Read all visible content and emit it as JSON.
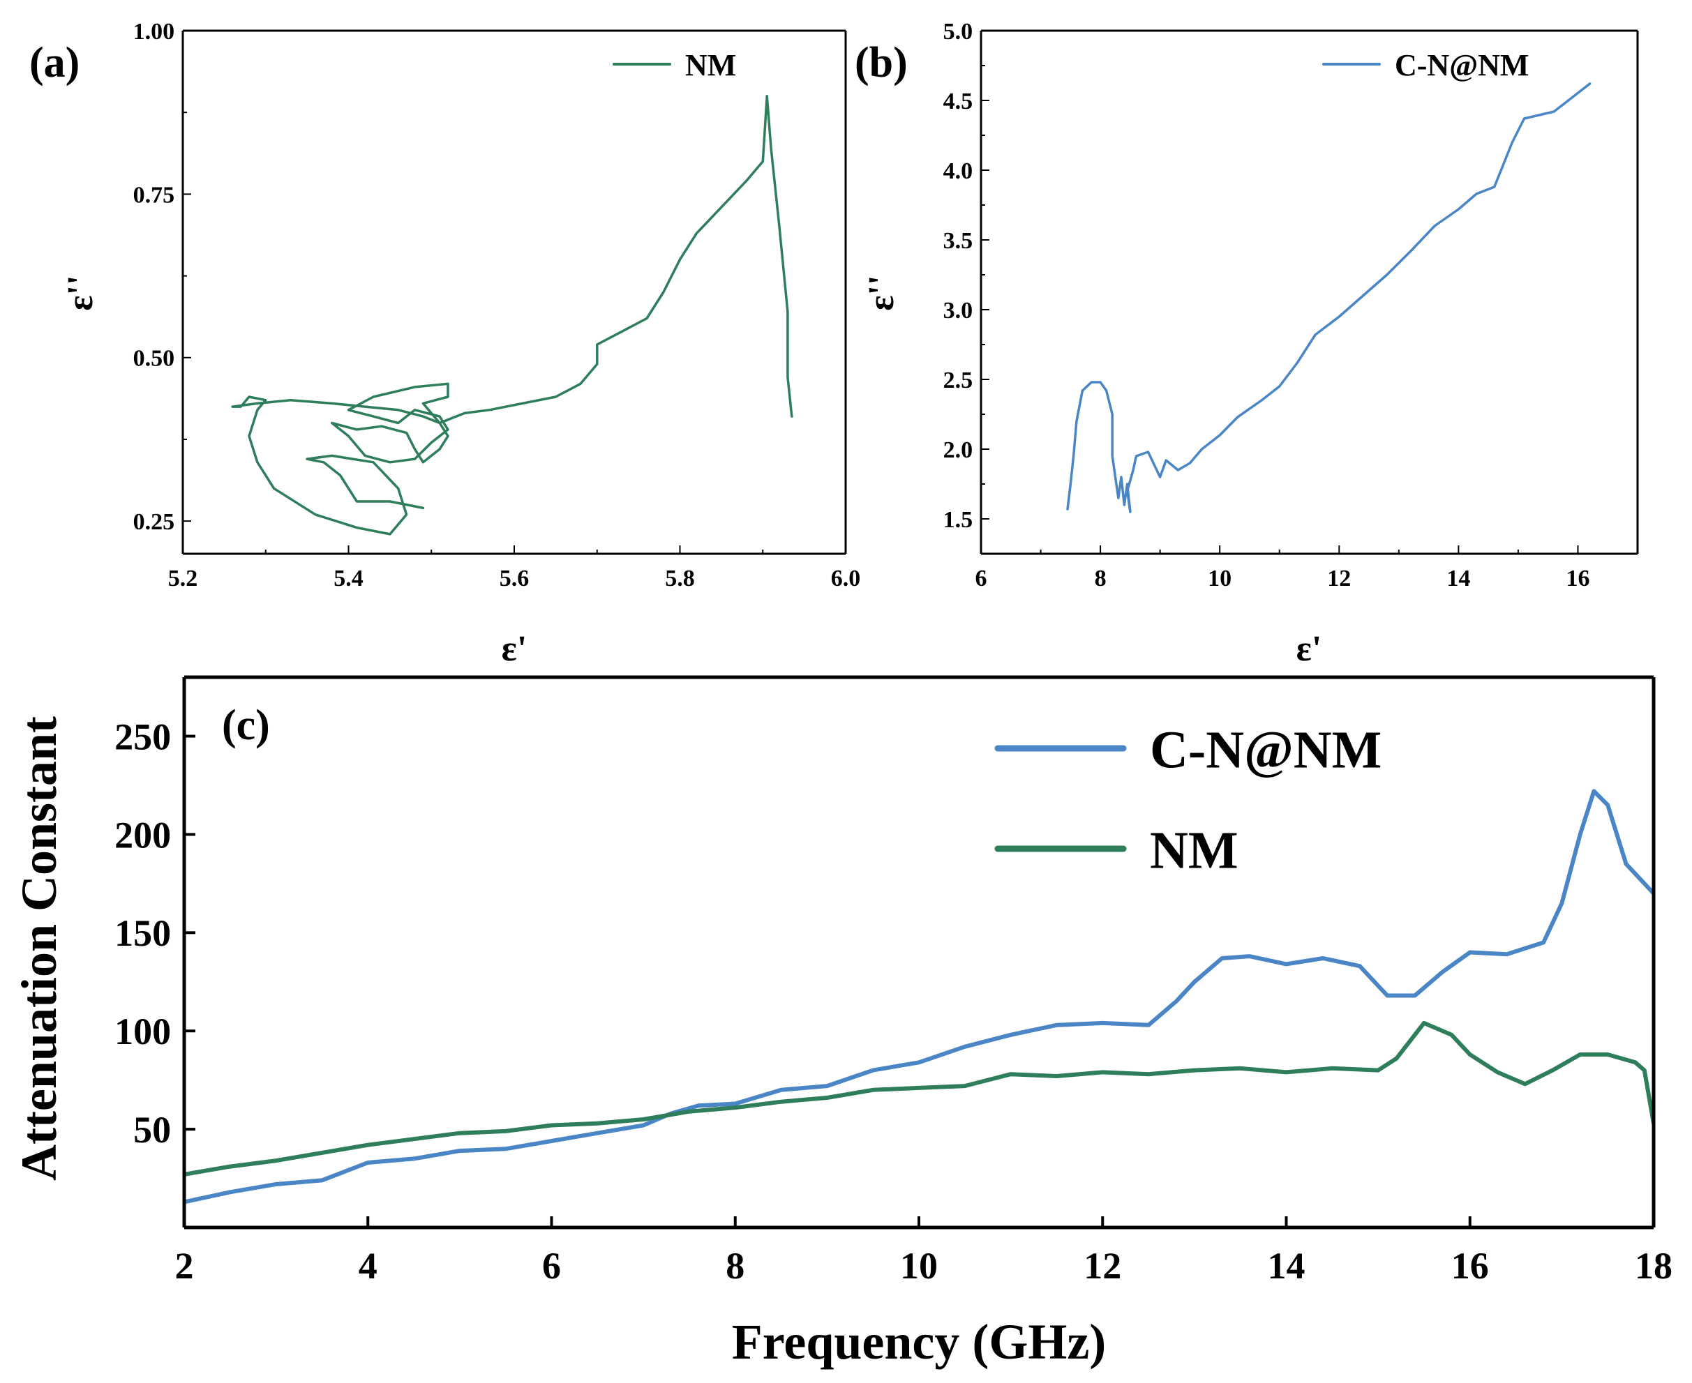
{
  "chart_data": [
    {
      "id": "a",
      "panel_label": "(a)",
      "type": "line",
      "xlabel": "ε'",
      "ylabel": "ε''",
      "xlim": [
        5.2,
        6.0
      ],
      "ylim": [
        0.2,
        1.0
      ],
      "xticks": [
        "5.2",
        "5.4",
        "5.6",
        "5.8",
        "6.0"
      ],
      "yticks": [
        "0.25",
        "0.50",
        "0.75",
        "1.00"
      ],
      "legend_position": "top-right",
      "series": [
        {
          "name": "NM",
          "color": "#2e7d5b",
          "points": [
            [
              5.49,
              0.27
            ],
            [
              5.45,
              0.28
            ],
            [
              5.41,
              0.28
            ],
            [
              5.39,
              0.32
            ],
            [
              5.37,
              0.34
            ],
            [
              5.35,
              0.345
            ],
            [
              5.38,
              0.35
            ],
            [
              5.43,
              0.34
            ],
            [
              5.46,
              0.3
            ],
            [
              5.47,
              0.26
            ],
            [
              5.45,
              0.23
            ],
            [
              5.41,
              0.24
            ],
            [
              5.36,
              0.26
            ],
            [
              5.31,
              0.3
            ],
            [
              5.29,
              0.34
            ],
            [
              5.28,
              0.38
            ],
            [
              5.29,
              0.42
            ],
            [
              5.3,
              0.435
            ],
            [
              5.28,
              0.44
            ],
            [
              5.27,
              0.425
            ],
            [
              5.26,
              0.425
            ],
            [
              5.29,
              0.43
            ],
            [
              5.33,
              0.435
            ],
            [
              5.38,
              0.43
            ],
            [
              5.42,
              0.425
            ],
            [
              5.46,
              0.42
            ],
            [
              5.49,
              0.41
            ],
            [
              5.51,
              0.4
            ],
            [
              5.52,
              0.38
            ],
            [
              5.51,
              0.36
            ],
            [
              5.49,
              0.34
            ],
            [
              5.48,
              0.36
            ],
            [
              5.47,
              0.385
            ],
            [
              5.44,
              0.395
            ],
            [
              5.41,
              0.39
            ],
            [
              5.38,
              0.4
            ],
            [
              5.4,
              0.38
            ],
            [
              5.42,
              0.35
            ],
            [
              5.45,
              0.34
            ],
            [
              5.48,
              0.345
            ],
            [
              5.5,
              0.37
            ],
            [
              5.52,
              0.39
            ],
            [
              5.51,
              0.41
            ],
            [
              5.48,
              0.42
            ],
            [
              5.46,
              0.4
            ],
            [
              5.43,
              0.41
            ],
            [
              5.4,
              0.42
            ],
            [
              5.43,
              0.44
            ],
            [
              5.48,
              0.455
            ],
            [
              5.52,
              0.46
            ],
            [
              5.52,
              0.44
            ],
            [
              5.49,
              0.43
            ],
            [
              5.51,
              0.4
            ],
            [
              5.54,
              0.415
            ],
            [
              5.57,
              0.42
            ],
            [
              5.61,
              0.43
            ],
            [
              5.65,
              0.44
            ],
            [
              5.68,
              0.46
            ],
            [
              5.7,
              0.49
            ],
            [
              5.7,
              0.52
            ],
            [
              5.73,
              0.54
            ],
            [
              5.76,
              0.56
            ],
            [
              5.78,
              0.6
            ],
            [
              5.8,
              0.65
            ],
            [
              5.82,
              0.69
            ],
            [
              5.85,
              0.73
            ],
            [
              5.88,
              0.77
            ],
            [
              5.9,
              0.8
            ],
            [
              5.905,
              0.9
            ],
            [
              5.91,
              0.82
            ],
            [
              5.92,
              0.7
            ],
            [
              5.93,
              0.57
            ],
            [
              5.93,
              0.47
            ],
            [
              5.935,
              0.41
            ]
          ]
        }
      ]
    },
    {
      "id": "b",
      "panel_label": "(b)",
      "type": "line",
      "xlabel": "ε'",
      "ylabel": "ε''",
      "xlim": [
        6,
        17
      ],
      "ylim": [
        1.25,
        5.0
      ],
      "xticks": [
        "6",
        "8",
        "10",
        "12",
        "14",
        "16"
      ],
      "yticks": [
        "1.5",
        "2.0",
        "2.5",
        "3.0",
        "3.5",
        "4.0",
        "4.5",
        "5.0"
      ],
      "legend_position": "top-right",
      "series": [
        {
          "name": "C-N@NM",
          "color": "#4a86c5",
          "points": [
            [
              7.45,
              1.57
            ],
            [
              7.5,
              1.75
            ],
            [
              7.55,
              1.95
            ],
            [
              7.6,
              2.2
            ],
            [
              7.7,
              2.42
            ],
            [
              7.85,
              2.48
            ],
            [
              8.0,
              2.48
            ],
            [
              8.1,
              2.42
            ],
            [
              8.2,
              2.25
            ],
            [
              8.2,
              1.95
            ],
            [
              8.25,
              1.8
            ],
            [
              8.3,
              1.65
            ],
            [
              8.35,
              1.8
            ],
            [
              8.4,
              1.6
            ],
            [
              8.45,
              1.75
            ],
            [
              8.5,
              1.55
            ],
            [
              8.45,
              1.7
            ],
            [
              8.55,
              1.85
            ],
            [
              8.6,
              1.95
            ],
            [
              8.8,
              1.98
            ],
            [
              9.0,
              1.8
            ],
            [
              9.1,
              1.92
            ],
            [
              9.3,
              1.85
            ],
            [
              9.5,
              1.9
            ],
            [
              9.7,
              2.0
            ],
            [
              10.0,
              2.1
            ],
            [
              10.3,
              2.23
            ],
            [
              10.7,
              2.35
            ],
            [
              11.0,
              2.45
            ],
            [
              11.3,
              2.62
            ],
            [
              11.6,
              2.82
            ],
            [
              12.0,
              2.95
            ],
            [
              12.4,
              3.1
            ],
            [
              12.8,
              3.25
            ],
            [
              13.2,
              3.42
            ],
            [
              13.6,
              3.6
            ],
            [
              14.0,
              3.72
            ],
            [
              14.3,
              3.83
            ],
            [
              14.6,
              3.88
            ],
            [
              14.9,
              4.2
            ],
            [
              15.1,
              4.37
            ],
            [
              15.6,
              4.42
            ],
            [
              16.2,
              4.62
            ]
          ]
        }
      ]
    },
    {
      "id": "c",
      "panel_label": "(c)",
      "type": "line",
      "xlabel": "Frequency (GHz)",
      "ylabel": "Attenuation Constant",
      "xlim": [
        2,
        18
      ],
      "ylim": [
        0,
        280
      ],
      "xticks": [
        "2",
        "4",
        "6",
        "8",
        "10",
        "12",
        "14",
        "16",
        "18"
      ],
      "yticks": [
        "50",
        "100",
        "150",
        "200",
        "250"
      ],
      "legend_position": "top-right",
      "series": [
        {
          "name": "C-N@NM",
          "color": "#4a86c5",
          "points": [
            [
              2.0,
              13
            ],
            [
              2.5,
              18
            ],
            [
              3.0,
              22
            ],
            [
              3.5,
              24
            ],
            [
              4.0,
              33
            ],
            [
              4.5,
              35
            ],
            [
              5.0,
              39
            ],
            [
              5.5,
              40
            ],
            [
              6.0,
              44
            ],
            [
              6.5,
              48
            ],
            [
              7.0,
              52
            ],
            [
              7.3,
              58
            ],
            [
              7.6,
              62
            ],
            [
              8.0,
              63
            ],
            [
              8.5,
              70
            ],
            [
              9.0,
              72
            ],
            [
              9.5,
              80
            ],
            [
              10.0,
              84
            ],
            [
              10.5,
              92
            ],
            [
              11.0,
              98
            ],
            [
              11.5,
              103
            ],
            [
              12.0,
              104
            ],
            [
              12.5,
              103
            ],
            [
              12.8,
              115
            ],
            [
              13.0,
              125
            ],
            [
              13.3,
              137
            ],
            [
              13.6,
              138
            ],
            [
              14.0,
              134
            ],
            [
              14.4,
              137
            ],
            [
              14.8,
              133
            ],
            [
              15.1,
              118
            ],
            [
              15.4,
              118
            ],
            [
              15.7,
              130
            ],
            [
              16.0,
              140
            ],
            [
              16.4,
              139
            ],
            [
              16.8,
              145
            ],
            [
              17.0,
              165
            ],
            [
              17.2,
              200
            ],
            [
              17.35,
              222
            ],
            [
              17.5,
              215
            ],
            [
              17.7,
              185
            ],
            [
              17.9,
              175
            ],
            [
              18.0,
              170
            ]
          ]
        },
        {
          "name": "NM",
          "color": "#2e7d5b",
          "points": [
            [
              2.0,
              27
            ],
            [
              2.5,
              31
            ],
            [
              3.0,
              34
            ],
            [
              3.5,
              38
            ],
            [
              4.0,
              42
            ],
            [
              4.5,
              45
            ],
            [
              5.0,
              48
            ],
            [
              5.5,
              49
            ],
            [
              6.0,
              52
            ],
            [
              6.5,
              53
            ],
            [
              7.0,
              55
            ],
            [
              7.5,
              59
            ],
            [
              8.0,
              61
            ],
            [
              8.5,
              64
            ],
            [
              9.0,
              66
            ],
            [
              9.5,
              70
            ],
            [
              10.0,
              71
            ],
            [
              10.5,
              72
            ],
            [
              11.0,
              78
            ],
            [
              11.5,
              77
            ],
            [
              12.0,
              79
            ],
            [
              12.5,
              78
            ],
            [
              13.0,
              80
            ],
            [
              13.5,
              81
            ],
            [
              14.0,
              79
            ],
            [
              14.5,
              81
            ],
            [
              15.0,
              80
            ],
            [
              15.2,
              86
            ],
            [
              15.5,
              104
            ],
            [
              15.8,
              98
            ],
            [
              16.0,
              88
            ],
            [
              16.3,
              79
            ],
            [
              16.6,
              73
            ],
            [
              16.9,
              80
            ],
            [
              17.2,
              88
            ],
            [
              17.5,
              88
            ],
            [
              17.8,
              84
            ],
            [
              17.9,
              80
            ],
            [
              18.0,
              53
            ]
          ]
        }
      ]
    }
  ]
}
